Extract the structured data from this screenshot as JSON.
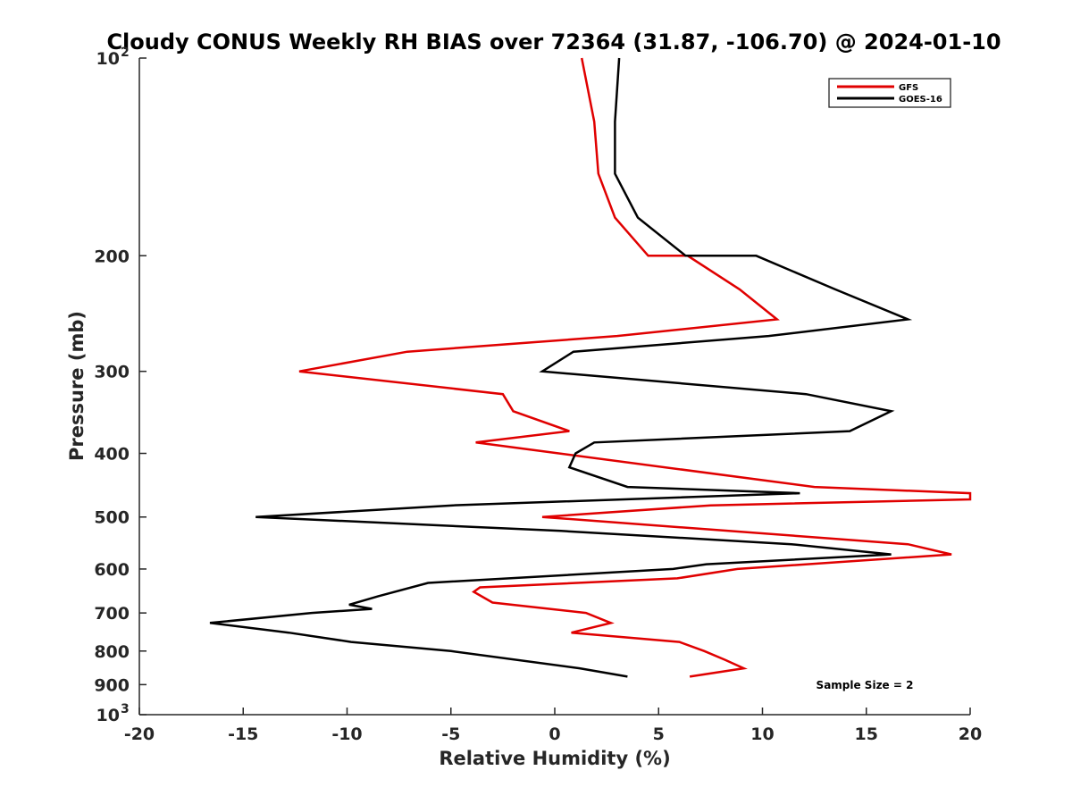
{
  "chart_data": {
    "type": "line",
    "title": "Cloudy CONUS Weekly RH BIAS over 72364 (31.87, -106.70) @ 2024-01-10",
    "xlabel": "Relative Humidity (%)",
    "ylabel": "Pressure (mb)",
    "xlim": [
      -20,
      20
    ],
    "ylim": [
      100,
      1000
    ],
    "y_scale": "log",
    "y_reversed": true,
    "grid": false,
    "legend_position": "top-right",
    "x_ticks": [
      "-20",
      "-15",
      "-10",
      "-5",
      "0",
      "5",
      "10",
      "15",
      "20"
    ],
    "y_ticks": [
      {
        "value": 100,
        "base": "10",
        "exp": "2"
      },
      {
        "value": 200,
        "label": "200"
      },
      {
        "value": 300,
        "label": "300"
      },
      {
        "value": 400,
        "label": "400"
      },
      {
        "value": 500,
        "label": "500"
      },
      {
        "value": 600,
        "label": "600"
      },
      {
        "value": 700,
        "label": "700"
      },
      {
        "value": 800,
        "label": "800"
      },
      {
        "value": 900,
        "label": "900"
      },
      {
        "value": 1000,
        "base": "10",
        "exp": "3"
      }
    ],
    "annotation": "Sample Size = 2",
    "series": [
      {
        "name": "GFS",
        "color": "#e00000",
        "points": [
          {
            "x": 1.3,
            "p": 100
          },
          {
            "x": 1.9,
            "p": 125
          },
          {
            "x": 2.1,
            "p": 150
          },
          {
            "x": 2.9,
            "p": 175
          },
          {
            "x": 4.5,
            "p": 200
          },
          {
            "x": 6.4,
            "p": 200
          },
          {
            "x": 8.9,
            "p": 225
          },
          {
            "x": 10.7,
            "p": 250
          },
          {
            "x": 3.0,
            "p": 265
          },
          {
            "x": -7.1,
            "p": 280
          },
          {
            "x": -12.3,
            "p": 300
          },
          {
            "x": -2.5,
            "p": 325
          },
          {
            "x": -2.0,
            "p": 345
          },
          {
            "x": 0.7,
            "p": 370
          },
          {
            "x": -3.8,
            "p": 385
          },
          {
            "x": 12.5,
            "p": 450
          },
          {
            "x": 20.0,
            "p": 460
          },
          {
            "x": 20.0,
            "p": 470
          },
          {
            "x": 7.5,
            "p": 480
          },
          {
            "x": -0.6,
            "p": 500
          },
          {
            "x": 17.0,
            "p": 550
          },
          {
            "x": 19.1,
            "p": 570
          },
          {
            "x": 8.8,
            "p": 600
          },
          {
            "x": 5.9,
            "p": 620
          },
          {
            "x": -3.6,
            "p": 640
          },
          {
            "x": -3.9,
            "p": 650
          },
          {
            "x": -3.0,
            "p": 675
          },
          {
            "x": 1.5,
            "p": 700
          },
          {
            "x": 2.7,
            "p": 725
          },
          {
            "x": 0.8,
            "p": 750
          },
          {
            "x": 6.0,
            "p": 775
          },
          {
            "x": 7.2,
            "p": 800
          },
          {
            "x": 8.2,
            "p": 825
          },
          {
            "x": 9.1,
            "p": 850
          },
          {
            "x": 6.5,
            "p": 875
          }
        ]
      },
      {
        "name": "GOES-16",
        "color": "#000000",
        "points": [
          {
            "x": 3.1,
            "p": 100
          },
          {
            "x": 2.9,
            "p": 125
          },
          {
            "x": 2.9,
            "p": 150
          },
          {
            "x": 4.0,
            "p": 175
          },
          {
            "x": 6.3,
            "p": 200
          },
          {
            "x": 9.7,
            "p": 200
          },
          {
            "x": 13.5,
            "p": 225
          },
          {
            "x": 17.0,
            "p": 250
          },
          {
            "x": 10.3,
            "p": 265
          },
          {
            "x": 0.9,
            "p": 280
          },
          {
            "x": -0.6,
            "p": 300
          },
          {
            "x": 12.1,
            "p": 325
          },
          {
            "x": 16.2,
            "p": 345
          },
          {
            "x": 14.2,
            "p": 370
          },
          {
            "x": 1.9,
            "p": 385
          },
          {
            "x": 1.0,
            "p": 400
          },
          {
            "x": 0.7,
            "p": 420
          },
          {
            "x": 3.5,
            "p": 450
          },
          {
            "x": 11.8,
            "p": 460
          },
          {
            "x": -4.9,
            "p": 480
          },
          {
            "x": -14.4,
            "p": 500
          },
          {
            "x": 0.3,
            "p": 525
          },
          {
            "x": 11.4,
            "p": 550
          },
          {
            "x": 16.2,
            "p": 570
          },
          {
            "x": 7.3,
            "p": 590
          },
          {
            "x": 5.7,
            "p": 600
          },
          {
            "x": -6.1,
            "p": 630
          },
          {
            "x": -8.5,
            "p": 660
          },
          {
            "x": -9.9,
            "p": 680
          },
          {
            "x": -8.8,
            "p": 690
          },
          {
            "x": -11.7,
            "p": 700
          },
          {
            "x": -16.6,
            "p": 725
          },
          {
            "x": -12.8,
            "p": 750
          },
          {
            "x": -9.8,
            "p": 775
          },
          {
            "x": -5.0,
            "p": 800
          },
          {
            "x": 1.2,
            "p": 850
          },
          {
            "x": 3.5,
            "p": 875
          }
        ]
      }
    ]
  }
}
